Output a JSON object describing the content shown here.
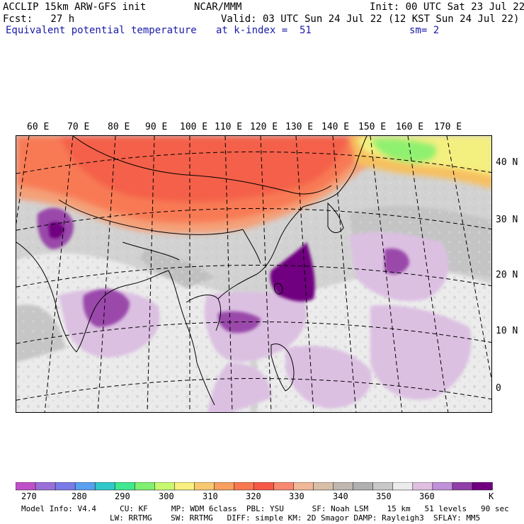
{
  "header": {
    "line1_left": "ACCLIP 15km ARW-GFS init",
    "line1_center": "NCAR/MMM",
    "line1_right": "Init: 00 UTC Sat 23 Jul 22",
    "line2_left": "Fcst:   27 h",
    "line2_right": "Valid: 03 UTC Sun 24 Jul 22 (12 KST Sun 24 Jul 22)",
    "line3_left": "Equivalent potential temperature",
    "line3_center": "at k-index =  51",
    "line3_right": "sm= 2"
  },
  "lon_labels": [
    "60 E",
    "70 E",
    "80 E",
    "90 E",
    "100 E",
    "110 E",
    "120 E",
    "130 E",
    "140 E",
    "150 E",
    "160 E",
    "170 E"
  ],
  "lat_labels": [
    "40 N",
    "30 N",
    "20 N",
    "10 N",
    "0"
  ],
  "colorbar": {
    "unit": "K",
    "ticks": [
      "270",
      "280",
      "290",
      "300",
      "310",
      "320",
      "330",
      "340",
      "350",
      "360"
    ],
    "colors": [
      "#c050c8",
      "#9a70d8",
      "#7a7ae8",
      "#5aa0f0",
      "#30c8c8",
      "#40e890",
      "#80f070",
      "#c8f870",
      "#f8f080",
      "#f8c870",
      "#f8a060",
      "#f87850",
      "#f85848",
      "#f88870",
      "#f0b898",
      "#d8c0a8",
      "#c0b8b0",
      "#b0b0b0",
      "#c8c8c8",
      "#ececec",
      "#e0c0e0",
      "#c090d8",
      "#9040a8",
      "#700080"
    ]
  },
  "footer": {
    "line1": "Model Info: V4.4     CU: KF     MP: WDM 6class  PBL: YSU      SF: Noah LSM    15 km   51 levels   90 sec",
    "line2": "LW: RRTMG    SW: RRTMG   DIFF: simple KM: 2D Smagor DAMP: Rayleigh3  SFLAY: MM5"
  }
}
